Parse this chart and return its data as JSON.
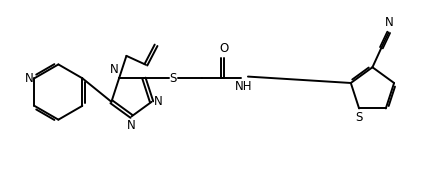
{
  "bg_color": "#ffffff",
  "line_color": "#000000",
  "line_width": 1.4,
  "font_size": 8.5,
  "fig_width": 4.28,
  "fig_height": 1.78,
  "xlim": [
    0,
    10.5
  ],
  "ylim": [
    0,
    4.15
  ]
}
